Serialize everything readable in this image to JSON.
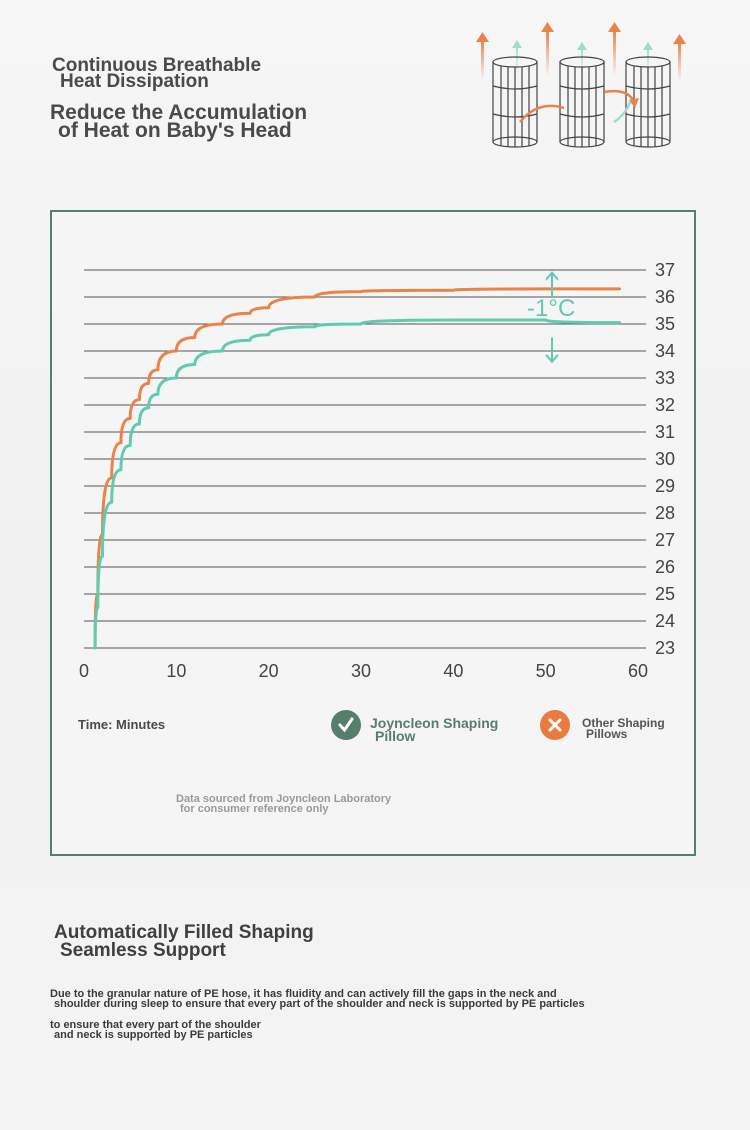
{
  "header": {
    "title_line1": "Continuous Breathable",
    "title_line2": "Heat Dissipation",
    "subtitle_line1": "Reduce the Accumulation",
    "subtitle_line2": "of Heat on Baby's Head"
  },
  "colors": {
    "orange": "#e8834a",
    "green": "#5fcbb0",
    "dark_green": "#577d6d",
    "grid": "#555555",
    "text": "#4a4a4a"
  },
  "chart_data": {
    "type": "line",
    "x_ticks": [
      0,
      10,
      20,
      30,
      40,
      50,
      60
    ],
    "y_ticks": [
      37,
      36,
      35,
      34,
      33,
      32,
      31,
      30,
      29,
      28,
      27,
      26,
      25,
      24,
      23
    ],
    "xlim": [
      0,
      60
    ],
    "ylim": [
      23,
      37
    ],
    "grid": true,
    "annotation": "-1°C",
    "series": [
      {
        "name": "Other Shaping Pillows",
        "color": "#e8834a",
        "x": [
          1.2,
          1.5,
          2,
          3,
          4,
          5,
          6,
          7,
          8,
          10,
          12,
          15,
          18,
          20,
          25,
          30,
          40,
          50,
          58
        ],
        "y": [
          23.1,
          25.0,
          27.2,
          29.3,
          30.6,
          31.5,
          32.2,
          32.8,
          33.3,
          34.0,
          34.5,
          35.0,
          35.4,
          35.6,
          36.0,
          36.2,
          36.25,
          36.3,
          36.3
        ]
      },
      {
        "name": "Joyncleon Shaping Pillow",
        "color": "#5fcbb0",
        "x": [
          1.2,
          1.5,
          2,
          3,
          4,
          5,
          6,
          7,
          8,
          10,
          12,
          15,
          18,
          20,
          25,
          30,
          40,
          50,
          58
        ],
        "y": [
          23.0,
          24.5,
          26.4,
          28.4,
          29.6,
          30.5,
          31.3,
          31.9,
          32.4,
          33.0,
          33.5,
          34.0,
          34.4,
          34.6,
          34.9,
          35.0,
          35.15,
          35.15,
          35.05
        ]
      }
    ]
  },
  "footer": {
    "x_axis_label": "Time: Minutes",
    "legend_ours_line1": "Joyncleon Shaping",
    "legend_ours_line2": "Pillow",
    "legend_other_line1": "Other Shaping",
    "legend_other_line2": "Pillows",
    "source_line1": "Data sourced from Joyncleon Laboratory",
    "source_line2": "for consumer reference only"
  },
  "section2": {
    "title_line1": "Automatically Filled Shaping",
    "title_line2": "Seamless Support",
    "para1_line1": "Due to the granular nature of PE hose, it has fluidity and can actively fill the gaps in the neck and",
    "para1_line2": "shoulder during sleep to ensure that every part of the shoulder and neck is supported by PE particles",
    "para2_line1": "to ensure that every part of the shoulder",
    "para2_line2": "and neck is supported by PE particles"
  }
}
